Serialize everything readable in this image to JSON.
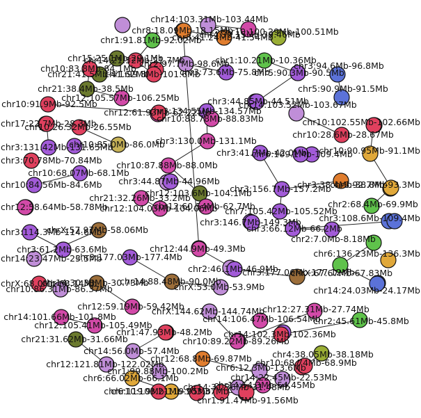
{
  "palette": {
    "red": "#e0405e",
    "magenta": "#d24aa8",
    "purple": "#a25bd8",
    "lavender": "#c08ed8",
    "blue": "#5b72d8",
    "green": "#5fc24b",
    "olive": "#9aae35",
    "darkolive": "#6b7a2e",
    "orange": "#e07d2e",
    "gold": "#e0a83a",
    "brown": "#9c6e3a",
    "khaki": "#c7b257"
  },
  "nodes": [
    {
      "id": "n1",
      "label": "chr14:103.31Mb-103.44Mb",
      "color": "lavender"
    },
    {
      "id": "n2",
      "label": "chr8:18.09Mb-18.15Mb",
      "color": "orange"
    },
    {
      "id": "n3",
      "label": "chr1:91.81Mb-92.02Mb",
      "color": "green"
    },
    {
      "id": "n4",
      "label": "chr10:100.29Mb-100.51Mb",
      "color": "olive"
    },
    {
      "id": "n5",
      "label": "chr15:25.1Mb-29.1Mb",
      "color": "darkolive"
    },
    {
      "id": "n6",
      "label": "chr8:41.24Mb-41.54Mb",
      "color": "orange"
    },
    {
      "id": "n7",
      "label": "chr4:39.15Mb-39.46Mb",
      "color": "magenta"
    },
    {
      "id": "n8",
      "label": "chr21:41.5Mb-41.62Mb",
      "color": "darkolive"
    },
    {
      "id": "n9",
      "label": "chr1:10.21Mb-10.36Mb",
      "color": "green"
    },
    {
      "id": "n10",
      "label": "chr14:21.52Mb-21.7Mb",
      "color": "red"
    },
    {
      "id": "n11",
      "label": "chr2:97.7Mb-98.6Mb",
      "color": "lavender"
    },
    {
      "id": "n12",
      "label": "chr10:83.8Mb-84.1Mb",
      "color": "red"
    },
    {
      "id": "n13",
      "label": "chr3:73.6Mb-75.8Mb",
      "color": "purple"
    },
    {
      "id": "n14",
      "label": "chr3:94.6Mb-96.8Mb",
      "color": "blue"
    },
    {
      "id": "n15",
      "label": "chr5:90.3Mb-90.5Mb",
      "color": "purple"
    },
    {
      "id": "n16",
      "label": "chr1:99.8Mb-101.6Mb",
      "color": "red"
    },
    {
      "id": "n17",
      "label": "chr21:38.4Mb-38.5Mb",
      "color": "darkolive"
    },
    {
      "id": "n18",
      "label": "chr5:90.9Mb-91.5Mb",
      "color": "blue"
    },
    {
      "id": "n19",
      "label": "chr3:44.85Mb-44.51Mb",
      "color": "purple"
    },
    {
      "id": "n20",
      "label": "chr12:105.57Mb-106.25Mb",
      "color": "magenta"
    },
    {
      "id": "n21",
      "label": "chr10:91.9Mb-92.5Mb",
      "color": "red"
    },
    {
      "id": "n22",
      "label": "chr14:103.52Mb-103.67Mb",
      "color": "lavender"
    },
    {
      "id": "n23",
      "label": "chr3:134.55Mb-134.57Mb",
      "color": "purple"
    },
    {
      "id": "n24",
      "label": "chr12:61.93Mb-62.22Mb",
      "color": "red"
    },
    {
      "id": "n25",
      "label": "chr10:88.78Mb-88.83Mb",
      "color": "magenta"
    },
    {
      "id": "n26",
      "label": "chr10:26.32Mb-26.55Mb",
      "color": "red"
    },
    {
      "id": "n27",
      "label": "chr10:85.0Mb-86.0Mb",
      "color": "khaki"
    },
    {
      "id": "n28",
      "label": "chr10:28.6Mb-28.67Mb",
      "color": "red"
    },
    {
      "id": "n29",
      "label": "chr17:22.7Mb-28.3Mb",
      "color": "red"
    },
    {
      "id": "n30",
      "label": "chr3:131.42Mb-131.65Mb",
      "color": "purple"
    },
    {
      "id": "n31",
      "label": "chr3:130.0Mb-131.1Mb",
      "color": "magenta"
    },
    {
      "id": "n32",
      "label": "chr10:102.55Mb-102.66Mb",
      "color": "red"
    },
    {
      "id": "n33",
      "label": "chr6:109.1Mb-109.4Mb",
      "color": "purple"
    },
    {
      "id": "n34",
      "label": "chr10:87.88Mb-88.0Mb",
      "color": "magenta"
    },
    {
      "id": "n35",
      "label": "chr10:68.07Mb-68.1Mb",
      "color": "purple"
    },
    {
      "id": "n36",
      "label": "chr3:41.7Mb-42.0Mb",
      "color": "purple"
    },
    {
      "id": "n37",
      "label": "chr10:90.95Mb-91.1Mb",
      "color": "gold"
    },
    {
      "id": "n38",
      "label": "chr3:70.78Mb-70.84Mb",
      "color": "red"
    },
    {
      "id": "n39",
      "label": "chr12:103.6Mb-104.1Mb",
      "color": "darkolive"
    },
    {
      "id": "n40",
      "label": "chr3:44.87Mb-44.96Mb",
      "color": "purple"
    },
    {
      "id": "n41",
      "label": "chr10:84.56Mb-84.6Mb",
      "color": "purple"
    },
    {
      "id": "n42",
      "label": "chr3:156.7Mb-157.2Mb",
      "color": "purple"
    },
    {
      "id": "n43",
      "label": "chr3:38.4Mb-38.8Mb",
      "color": "orange"
    },
    {
      "id": "n44",
      "label": "chr6:92.7Mb-93.3Mb",
      "color": "gold"
    },
    {
      "id": "n45",
      "label": "chr21:32.26Mb-33.2Mb",
      "color": "magenta"
    },
    {
      "id": "n46",
      "label": "chr12:58.64Mb-58.78Mb",
      "color": "magenta"
    },
    {
      "id": "n47",
      "label": "chr12:60.54Mb-62.7Mb",
      "color": "magenta"
    },
    {
      "id": "n48",
      "label": "chr2:68.4Mb-69.9Mb",
      "color": "green"
    },
    {
      "id": "n49",
      "label": "chr7:105.42Mb-105.52Mb",
      "color": "purple"
    },
    {
      "id": "n50",
      "label": "chr12:104.03Mb-104.06Mb",
      "color": "magenta"
    },
    {
      "id": "n51",
      "label": "chr3:66.12Mb-66.2Mb",
      "color": "purple"
    },
    {
      "id": "n52",
      "label": "chr3:108.6Mb-109.4Mb",
      "color": "blue"
    },
    {
      "id": "n53",
      "label": "chr3:114.3Mb-114.6Mb",
      "color": "purple"
    },
    {
      "id": "n54",
      "label": "chr3:146.7Mb-149.3Mb",
      "color": "purple"
    },
    {
      "id": "n55",
      "label": "chr2:7.0Mb-8.18Mb",
      "color": "purple"
    },
    {
      "id": "n56",
      "label": "chrX:57.97Mb-58.06Mb",
      "color": "brown"
    },
    {
      "id": "n57",
      "label": "chr3:61.2Mb-63.6Mb",
      "color": "purple"
    },
    {
      "id": "n58",
      "label": "chr12:44.9Mb-49.3Mb",
      "color": "magenta"
    },
    {
      "id": "n59",
      "label": "chr3:177.03Mb-177.4Mb",
      "color": "purple"
    },
    {
      "id": "n60",
      "label": "chr6:136.23Mb-136.3Mb",
      "color": "green"
    },
    {
      "id": "n61",
      "label": "chr14:23.47Mb-23.5Mb",
      "color": "lavender"
    },
    {
      "id": "n62",
      "label": "chr2:46.1Mb-46.9Mb",
      "color": "purple"
    },
    {
      "id": "n63",
      "label": "chrX:68.0Mb-68.14Mb",
      "color": "red"
    },
    {
      "id": "n64",
      "label": "chr14:88.48Mb-90.0Mb",
      "color": "brown"
    },
    {
      "id": "n65",
      "label": "chrX:67.67Mb-67.83Mb",
      "color": "green"
    },
    {
      "id": "n66",
      "label": "chr3:177.06Mb-177.12Mb",
      "color": "brown"
    },
    {
      "id": "n67",
      "label": "chr10:86.31Mb-86.37Mb",
      "color": "lavender"
    },
    {
      "id": "n68",
      "label": "chrX:53.0Mb-53.9Mb",
      "color": "lavender"
    },
    {
      "id": "n69",
      "label": "chr14:24.03Mb-24.17Mb",
      "color": "blue"
    },
    {
      "id": "n70",
      "label": "chr14:30.38Mb-30.73Mb",
      "color": "brown"
    },
    {
      "id": "n71",
      "label": "chr14:101.66Mb-101.8Mb",
      "color": "magenta"
    },
    {
      "id": "n72",
      "label": "chr12:27.31Mb-27.74Mb",
      "color": "magenta"
    },
    {
      "id": "n73",
      "label": "chrX:144.62Mb-144.74Mb",
      "color": "lavender"
    },
    {
      "id": "n74",
      "label": "chr12:59.19Mb-59.42Mb",
      "color": "magenta"
    },
    {
      "id": "n75",
      "label": "chr14:106.47Mb-106.54Mb",
      "color": "magenta"
    },
    {
      "id": "n76",
      "label": "chr2:45.61Mb-45.8Mb",
      "color": "green"
    },
    {
      "id": "n77",
      "label": "chr12:105.41Mb-105.49Mb",
      "color": "magenta"
    },
    {
      "id": "n78",
      "label": "chr10:89.22Mb-89.26Mb",
      "color": "magenta"
    },
    {
      "id": "n79",
      "label": "chr1:47.93Mb-48.2Mb",
      "color": "red"
    },
    {
      "id": "n80",
      "label": "chr14:102.3Mb-102.36Mb",
      "color": "red"
    },
    {
      "id": "n81",
      "label": "chr21:31.62Mb-31.66Mb",
      "color": "darkolive"
    },
    {
      "id": "n82",
      "label": "chr14:56.0Mb-57.4Mb",
      "color": "lavender"
    },
    {
      "id": "n83",
      "label": "chr12:68.8Mb-69.87Mb",
      "color": "orange"
    },
    {
      "id": "n84",
      "label": "chr4:38.05Mb-38.18Mb",
      "color": "olive"
    },
    {
      "id": "n85",
      "label": "chr12:121.81Mb-122.02Mb",
      "color": "lavender"
    },
    {
      "id": "n86",
      "label": "chr1:99.88Mb-100.2Mb",
      "color": "lavender"
    },
    {
      "id": "n87",
      "label": "chr6:12.3Mb-13.6Mb",
      "color": "lavender"
    },
    {
      "id": "n88",
      "label": "chr10:68.74Mb-68.9Mb",
      "color": "red"
    },
    {
      "id": "n89",
      "label": "chr14:22.45Mb-22.53Mb",
      "color": "lavender"
    },
    {
      "id": "n90",
      "label": "chr6:66.02Mb-66.1Mb",
      "color": "gold"
    },
    {
      "id": "n91",
      "label": "chr14:31.36Mb-31.48Mb",
      "color": "lavender"
    },
    {
      "id": "n92",
      "label": "chr14:54.3Mb-54.45Mb",
      "color": "magenta"
    },
    {
      "id": "n93",
      "label": "chr10:103.21Mb-103.37Mb",
      "color": "gold"
    },
    {
      "id": "n94",
      "label": "chr1:91.47Mb-91.56Mb",
      "color": "red"
    },
    {
      "id": "n95",
      "label": "chr6:119.9Mb-119.95Mb",
      "color": "red"
    }
  ],
  "extra_nodes": [
    {
      "id": "x1",
      "color": "lavender"
    },
    {
      "id": "x2",
      "color": "red"
    },
    {
      "id": "x3",
      "color": "purple"
    },
    {
      "id": "x4",
      "color": "red"
    },
    {
      "id": "x5",
      "color": "magenta"
    },
    {
      "id": "x6",
      "color": "purple"
    },
    {
      "id": "x7",
      "color": "magenta"
    },
    {
      "id": "x8",
      "color": "red"
    },
    {
      "id": "x9",
      "color": "purple"
    },
    {
      "id": "x10",
      "color": "purple"
    },
    {
      "id": "x11",
      "color": "lavender"
    },
    {
      "id": "x12",
      "color": "purple"
    },
    {
      "id": "x13",
      "color": "red"
    },
    {
      "id": "x14",
      "color": "blue"
    },
    {
      "id": "x15",
      "color": "gold"
    },
    {
      "id": "x16",
      "color": "red"
    },
    {
      "id": "x17",
      "color": "blue"
    },
    {
      "id": "x18",
      "color": "gold"
    },
    {
      "id": "x19",
      "color": "magenta"
    },
    {
      "id": "x20",
      "color": "red"
    },
    {
      "id": "x21",
      "color": "purple"
    },
    {
      "id": "x22",
      "color": "magenta"
    },
    {
      "id": "x23",
      "color": "orange"
    },
    {
      "id": "x24",
      "color": "red"
    },
    {
      "id": "x25",
      "color": "red"
    },
    {
      "id": "x26",
      "color": "magenta"
    },
    {
      "id": "x27",
      "color": "lavender"
    },
    {
      "id": "x28",
      "color": "purple"
    }
  ],
  "edges": [
    [
      "n1",
      "n7"
    ],
    [
      "n2",
      "n6"
    ],
    [
      "n3",
      "n10"
    ],
    [
      "n10",
      "n16"
    ],
    [
      "n5",
      "n8"
    ],
    [
      "n11",
      "n13"
    ],
    [
      "n9",
      "n15"
    ],
    [
      "n14",
      "n18"
    ],
    [
      "n19",
      "n15"
    ],
    [
      "n17",
      "n20"
    ],
    [
      "n12",
      "n17"
    ],
    [
      "n21",
      "n24"
    ],
    [
      "n22",
      "n28"
    ],
    [
      "n31",
      "n23"
    ],
    [
      "n31",
      "n34"
    ],
    [
      "n34",
      "n39"
    ],
    [
      "n39",
      "n47"
    ],
    [
      "n42",
      "n49"
    ],
    [
      "n36",
      "n42"
    ],
    [
      "n43",
      "n42"
    ],
    [
      "n51",
      "n55"
    ],
    [
      "n52",
      "n51"
    ],
    [
      "n58",
      "n62"
    ],
    [
      "n62",
      "n66"
    ],
    [
      "n59",
      "n64"
    ],
    [
      "n64",
      "n68"
    ],
    [
      "n70",
      "n74"
    ],
    [
      "n72",
      "n78"
    ],
    [
      "n73",
      "n78"
    ],
    [
      "n79",
      "n82"
    ],
    [
      "n82",
      "n86"
    ],
    [
      "n83",
      "n89"
    ],
    [
      "n84",
      "n88"
    ],
    [
      "n87",
      "n91"
    ],
    [
      "n93",
      "n95"
    ],
    [
      "n60",
      "n65"
    ],
    [
      "n65",
      "n69"
    ],
    [
      "n76",
      "n80"
    ],
    [
      "n32",
      "n37"
    ],
    [
      "n37",
      "n44"
    ],
    [
      "n44",
      "n48"
    ],
    [
      "n26",
      "n27"
    ],
    [
      "n29",
      "n30"
    ],
    [
      "n35",
      "n41"
    ],
    [
      "n53",
      "n57"
    ],
    [
      "n56",
      "n61"
    ],
    [
      "n63",
      "n67"
    ],
    [
      "n71",
      "n77"
    ],
    [
      "n81",
      "n85"
    ],
    [
      "n90",
      "n93"
    ],
    [
      "n94",
      "n92"
    ],
    [
      "x25",
      "x26"
    ],
    [
      "x11",
      "n40"
    ],
    [
      "n45",
      "n50"
    ],
    [
      "x22",
      "x23"
    ]
  ]
}
